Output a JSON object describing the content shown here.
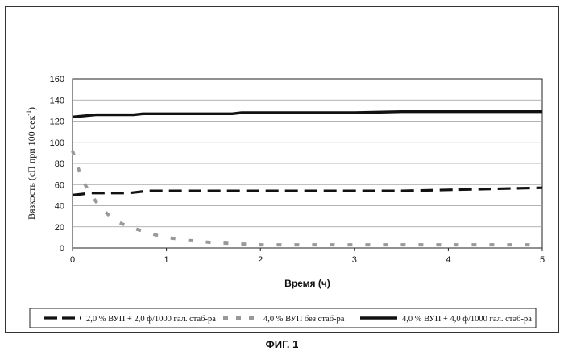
{
  "caption": "ФИГ. 1",
  "chart_data": {
    "type": "line",
    "xlabel": "Время (ч)",
    "ylabel": "Вязкость (сП при 100 сек",
    "ylabel_sup": "-1",
    "ylabel_close": ")",
    "xlim": [
      0,
      5
    ],
    "ylim": [
      0,
      160
    ],
    "xticks": [
      "0",
      "1",
      "2",
      "3",
      "4",
      "5"
    ],
    "yticks": [
      "0",
      "20",
      "40",
      "60",
      "80",
      "100",
      "120",
      "140",
      "160"
    ],
    "grid": true,
    "legend_position": "bottom",
    "series": [
      {
        "name": "2,0 % ВУП + 2,0 ф/1000 гал. стаб-ра",
        "color": "#111111",
        "style": "dashed",
        "x": [
          0,
          0.2,
          0.4,
          0.6,
          0.8,
          1.0,
          1.5,
          2.0,
          2.5,
          3.0,
          3.5,
          4.0,
          4.5,
          5.0
        ],
        "y": [
          50,
          52,
          52,
          52,
          54,
          54,
          54,
          54,
          54,
          54,
          54,
          55,
          56,
          57
        ]
      },
      {
        "name": "4,0 % ВУП без стаб-ра",
        "color": "#999999",
        "style": "dotted",
        "x": [
          0,
          0.1,
          0.2,
          0.3,
          0.4,
          0.5,
          0.6,
          0.75,
          0.9,
          1.0,
          1.25,
          1.5,
          1.75,
          2.0,
          2.5,
          3.0,
          3.5,
          4.0,
          4.5,
          5.0
        ],
        "y": [
          92,
          65,
          50,
          38,
          30,
          24,
          20,
          16,
          12,
          10,
          7,
          5,
          4,
          3,
          3,
          3,
          3,
          3,
          3,
          3
        ]
      },
      {
        "name": "4,0 % ВУП + 4,0 ф/1000 гал. стаб-ра",
        "color": "#111111",
        "style": "solid",
        "x": [
          0,
          0.25,
          0.5,
          0.65,
          0.75,
          1.0,
          1.5,
          1.7,
          1.8,
          2.0,
          2.5,
          3.0,
          3.5,
          4.0,
          4.5,
          5.0
        ],
        "y": [
          124,
          126,
          126,
          126,
          127,
          127,
          127,
          127,
          128,
          128,
          128,
          128,
          129,
          129,
          129,
          129
        ]
      }
    ]
  }
}
